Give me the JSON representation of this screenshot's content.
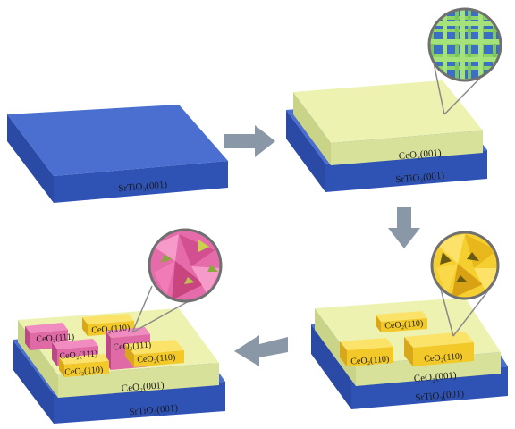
{
  "labels": {
    "sto_panel1": "SrTiO₃(001)",
    "ceo_panel2": "CeO₂(001)",
    "sto_panel2": "SrTiO₃(001)",
    "ceo_panel3": "CeO₂(001)",
    "sto_panel3": "SrTiO₃(001)",
    "island_p3_back": "CeO₂(110)",
    "island_p3_left": "CeO₂(110)",
    "island_p3_right": "CeO₂(110)",
    "ceo_panel4": "CeO₂(001)",
    "sto_panel4": "SrTiO₃(001)",
    "p4_111_a": "CeO₂(111)",
    "p4_110_a": "CeO₂(110)",
    "p4_111_b": "CeO₂(111)",
    "p4_111_c": "CeO₂(111)",
    "p4_110_b": "CeO₂(110)",
    "p4_110_c": "CeO₂(110)"
  },
  "colors": {
    "substrate_top": "#4a6fd0",
    "substrate_side": "#2d4fb0",
    "film_top": "#edf2b0",
    "film_side": "#cfd98a",
    "island_110": "#f7d33c",
    "island_111": "#e06aa6",
    "arrow": "#8a97a6",
    "callout": "#8a8a8a"
  },
  "icons": [
    "arrow-right-icon",
    "arrow-down-icon",
    "arrow-left-icon",
    "magnifier-callout-icon"
  ]
}
